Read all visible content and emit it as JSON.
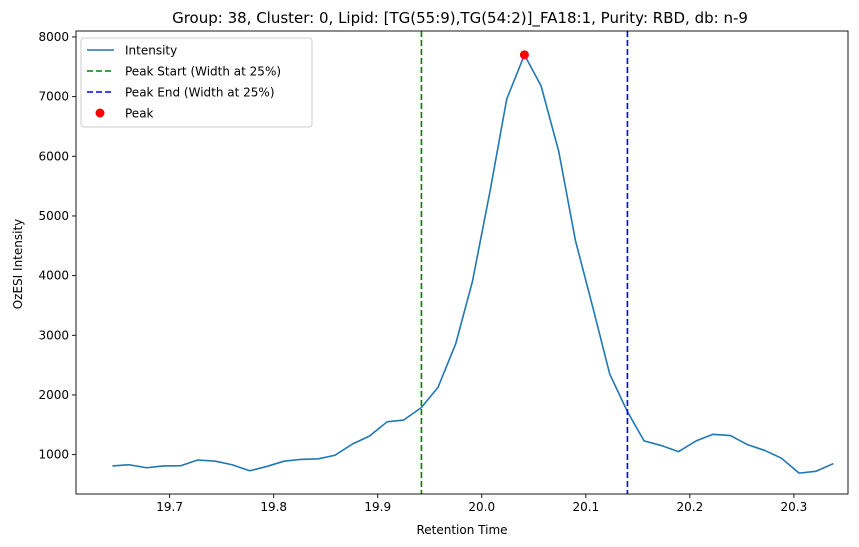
{
  "chart_data": {
    "type": "line",
    "title": "Group: 38, Cluster: 0, Lipid: [TG(55:9),TG(54:2)]_FA18:1, Purity: RBD, db: n-9",
    "xlabel": "Retention Time",
    "ylabel": "OzESI Intensity",
    "xlim": [
      19.61,
      20.352
    ],
    "ylim": [
      340,
      8100
    ],
    "xticks": [
      19.7,
      19.8,
      19.9,
      20.0,
      20.1,
      20.2,
      20.3
    ],
    "xtick_labels": [
      "19.7",
      "19.8",
      "19.9",
      "20.0",
      "20.1",
      "20.2",
      "20.3"
    ],
    "yticks": [
      1000,
      2000,
      3000,
      4000,
      5000,
      6000,
      7000,
      8000
    ],
    "ytick_labels": [
      "1000",
      "2000",
      "3000",
      "4000",
      "5000",
      "6000",
      "7000",
      "8000"
    ],
    "grid": false,
    "legend_position": "top-left",
    "series": [
      {
        "name": "Intensity",
        "kind": "line",
        "color": "#1f77b4",
        "x": [
          19.645,
          19.661,
          19.678,
          19.694,
          19.711,
          19.727,
          19.744,
          19.76,
          19.777,
          19.793,
          19.81,
          19.826,
          19.843,
          19.859,
          19.876,
          19.892,
          19.909,
          19.925,
          19.942,
          19.958,
          19.975,
          19.991,
          20.008,
          20.024,
          20.041,
          20.057,
          20.074,
          20.09,
          20.107,
          20.123,
          20.14,
          20.156,
          20.173,
          20.189,
          20.206,
          20.222,
          20.239,
          20.255,
          20.272,
          20.288,
          20.305,
          20.321,
          20.338
        ],
        "y": [
          810,
          830,
          780,
          810,
          815,
          910,
          890,
          830,
          730,
          800,
          890,
          920,
          930,
          990,
          1180,
          1310,
          1550,
          1580,
          1790,
          2130,
          2860,
          3900,
          5420,
          6960,
          7700,
          7180,
          6080,
          4590,
          3450,
          2350,
          1720,
          1230,
          1150,
          1050,
          1230,
          1340,
          1320,
          1170,
          1070,
          940,
          690,
          720,
          850
        ]
      },
      {
        "name": "Peak Start (Width at 25%)",
        "kind": "vline",
        "color": "#008000",
        "x": 19.942
      },
      {
        "name": "Peak End (Width at 25%)",
        "kind": "vline",
        "color": "#0000ff",
        "x": 20.14
      },
      {
        "name": "Peak",
        "kind": "point",
        "color": "#ff0000",
        "x": 20.041,
        "y": 7700
      }
    ]
  }
}
